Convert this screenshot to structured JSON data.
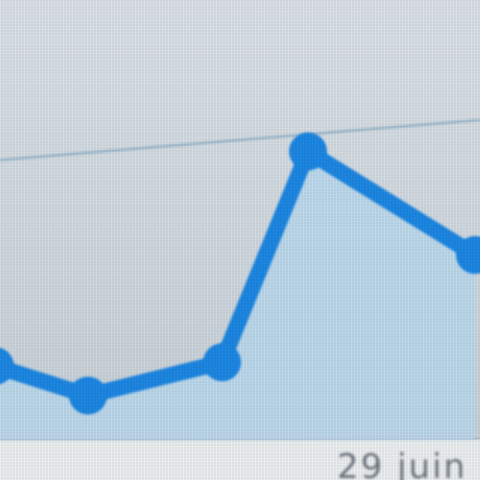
{
  "chart_data": {
    "type": "area",
    "title": "",
    "xlabel": "",
    "ylabel": "",
    "x_tick_labels": [
      "29 juin"
    ],
    "series": [
      {
        "values": [
          2.0,
          1.2,
          2.1,
          7.8,
          5.0
        ],
        "color": "#1e88e5",
        "fill_color": "#bcdcf1"
      }
    ],
    "ylim": [
      0,
      10
    ],
    "grid": true,
    "legend": "none"
  }
}
